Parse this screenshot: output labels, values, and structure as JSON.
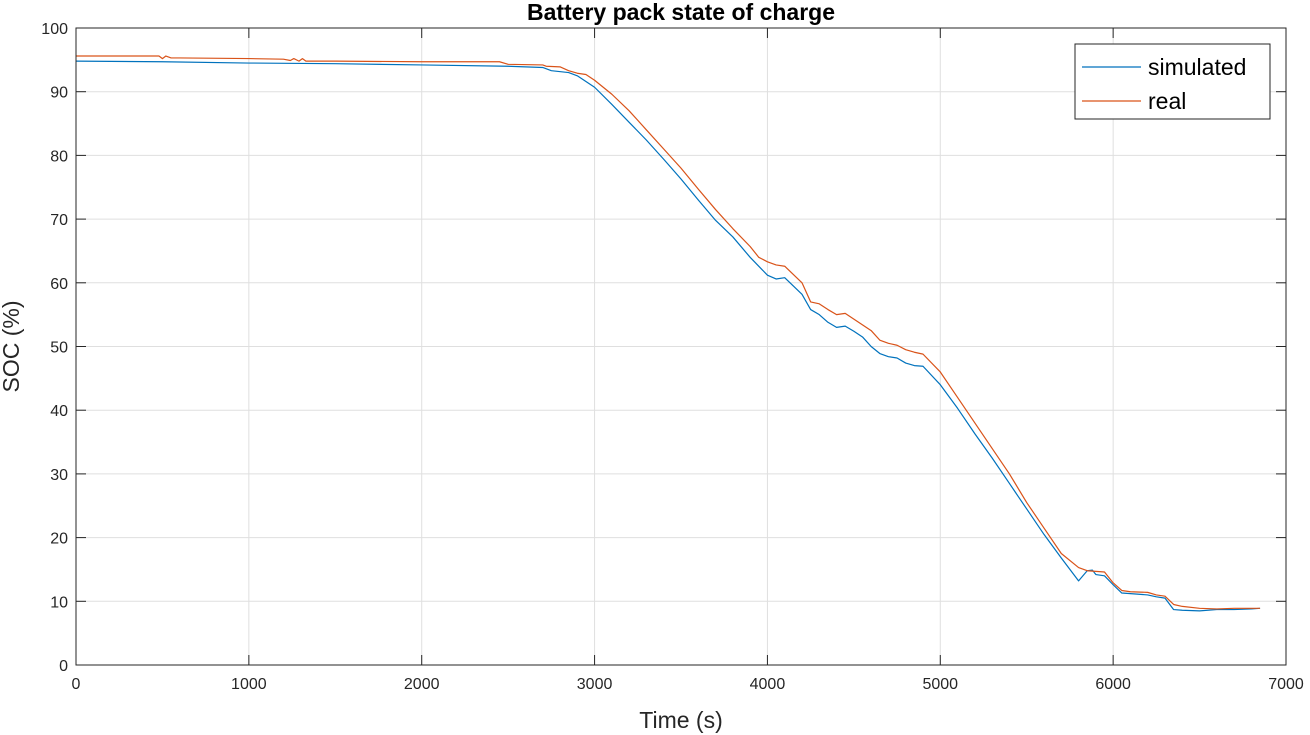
{
  "chart_data": {
    "type": "line",
    "title": "Battery pack state of charge",
    "xlabel": "Time (s)",
    "ylabel": "SOC (%)",
    "xlim": [
      0,
      7000
    ],
    "ylim": [
      0,
      100
    ],
    "xticks": [
      0,
      1000,
      2000,
      3000,
      4000,
      5000,
      6000,
      7000
    ],
    "yticks": [
      0,
      10,
      20,
      30,
      40,
      50,
      60,
      70,
      80,
      90,
      100
    ],
    "grid": true,
    "legend_position": "top-right",
    "series": [
      {
        "name": "simulated",
        "color": "#0072BD",
        "x": [
          0,
          500,
          1000,
          1500,
          2000,
          2500,
          2700,
          2750,
          2850,
          2900,
          3000,
          3100,
          3200,
          3300,
          3400,
          3500,
          3600,
          3700,
          3800,
          3900,
          4000,
          4050,
          4100,
          4200,
          4250,
          4300,
          4350,
          4400,
          4450,
          4500,
          4550,
          4600,
          4650,
          4700,
          4750,
          4800,
          4850,
          4900,
          5000,
          5100,
          5200,
          5300,
          5400,
          5500,
          5600,
          5700,
          5800,
          5850,
          5880,
          5900,
          5950,
          6000,
          6050,
          6100,
          6200,
          6250,
          6300,
          6350,
          6400,
          6500,
          6600,
          6700,
          6800,
          6850
        ],
        "y": [
          94.8,
          94.7,
          94.5,
          94.4,
          94.2,
          94.0,
          93.8,
          93.3,
          93.0,
          92.5,
          90.7,
          88.0,
          85.2,
          82.4,
          79.4,
          76.3,
          73.0,
          69.8,
          67.2,
          64.0,
          61.2,
          60.6,
          60.8,
          58.2,
          55.8,
          55.0,
          53.8,
          53.0,
          53.2,
          52.4,
          51.5,
          50.0,
          48.9,
          48.4,
          48.2,
          47.4,
          47.0,
          46.9,
          44.0,
          40.3,
          36.3,
          32.5,
          28.5,
          24.5,
          20.5,
          16.8,
          13.2,
          14.8,
          14.9,
          14.2,
          14.0,
          12.6,
          11.3,
          11.2,
          11.0,
          10.7,
          10.5,
          8.7,
          8.6,
          8.5,
          8.7,
          8.7,
          8.8,
          8.9
        ]
      },
      {
        "name": "real",
        "color": "#D95319",
        "x": [
          0,
          300,
          480,
          500,
          520,
          550,
          600,
          1000,
          1200,
          1240,
          1260,
          1290,
          1310,
          1330,
          1360,
          1500,
          2000,
          2450,
          2500,
          2700,
          2720,
          2800,
          2850,
          2900,
          2950,
          3000,
          3100,
          3200,
          3300,
          3400,
          3500,
          3600,
          3700,
          3800,
          3900,
          3950,
          4000,
          4050,
          4100,
          4200,
          4250,
          4300,
          4350,
          4400,
          4450,
          4500,
          4550,
          4600,
          4650,
          4700,
          4750,
          4800,
          4850,
          4900,
          5000,
          5100,
          5200,
          5300,
          5400,
          5500,
          5600,
          5700,
          5800,
          5850,
          5900,
          5950,
          6000,
          6050,
          6100,
          6200,
          6250,
          6300,
          6350,
          6400,
          6500,
          6600,
          6700,
          6800,
          6850
        ],
        "y": [
          95.6,
          95.6,
          95.6,
          95.2,
          95.6,
          95.3,
          95.3,
          95.2,
          95.1,
          94.9,
          95.2,
          94.8,
          95.2,
          94.8,
          94.8,
          94.8,
          94.7,
          94.7,
          94.3,
          94.2,
          94.0,
          93.9,
          93.3,
          92.9,
          92.7,
          91.8,
          89.6,
          87.0,
          84.0,
          81.0,
          78.0,
          74.7,
          71.5,
          68.5,
          65.7,
          64.0,
          63.3,
          62.8,
          62.6,
          60.0,
          57.0,
          56.7,
          55.8,
          55.0,
          55.2,
          54.3,
          53.4,
          52.5,
          51.0,
          50.5,
          50.2,
          49.5,
          49.1,
          48.8,
          46.0,
          42.0,
          38.0,
          34.0,
          30.0,
          25.5,
          21.5,
          17.5,
          15.3,
          14.8,
          14.7,
          14.6,
          12.9,
          11.7,
          11.5,
          11.4,
          11.0,
          10.8,
          9.5,
          9.2,
          8.9,
          8.8,
          8.9,
          8.9,
          8.9
        ]
      }
    ]
  }
}
